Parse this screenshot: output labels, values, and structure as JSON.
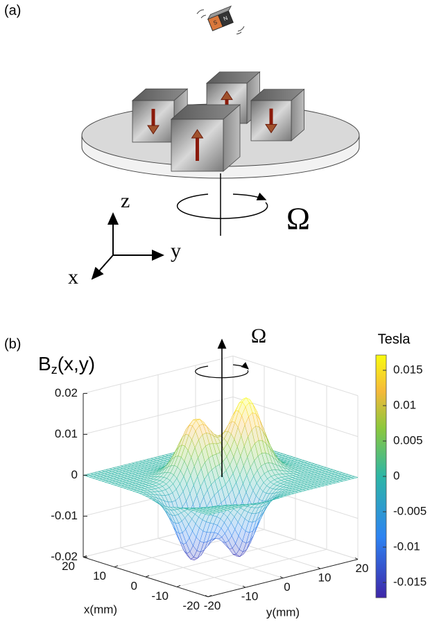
{
  "panel_a": {
    "label": "(a)",
    "magnet": {
      "south": "S",
      "north": "N"
    },
    "axes": {
      "z": "z",
      "y": "y",
      "x": "x"
    },
    "rotation": "Ω"
  },
  "panel_b": {
    "label": "(b)",
    "z_label": {
      "main": "B",
      "sub": "z",
      "args": "(x,y)"
    },
    "rotation": "Ω",
    "z_ticks": [
      0.02,
      0.01,
      0,
      -0.01,
      -0.02
    ],
    "x_ticks": [
      20,
      10,
      0,
      -10,
      -20
    ],
    "y_ticks": [
      -20,
      -10,
      0,
      10,
      20
    ],
    "x_label": "x(mm)",
    "y_label": "y(mm)",
    "colorbar": {
      "title": "Tesla",
      "ticks": [
        0.015,
        0.01,
        0.005,
        0,
        -0.005,
        -0.01,
        -0.015
      ]
    }
  }
}
